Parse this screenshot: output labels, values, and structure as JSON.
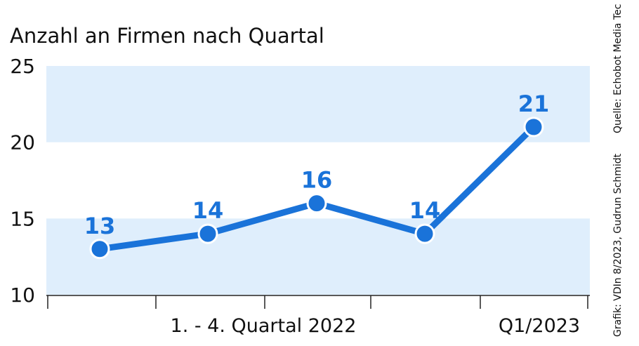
{
  "chart_data": {
    "type": "line",
    "title": "Anzahl an Firmen nach Quartal",
    "xlabel": "",
    "ylabel": "",
    "ylim": [
      10,
      25
    ],
    "yticks": [
      10,
      15,
      20,
      25
    ],
    "values": [
      13,
      14,
      16,
      14,
      21
    ],
    "data_labels": [
      "13",
      "14",
      "16",
      "14",
      "21"
    ],
    "period_labels": [
      "1. - 4. Quartal 2022",
      "Q1/2023"
    ],
    "grid": "alternating bands",
    "colors": {
      "line": "#1a73d9",
      "band": "#dfeefc",
      "point_outline": "#ffffff"
    }
  },
  "credit": {
    "source": "Quelle: Echobot Media Tec",
    "graphic": "Grafik: VDIn 8/2023, Gudrun Schmidt"
  }
}
